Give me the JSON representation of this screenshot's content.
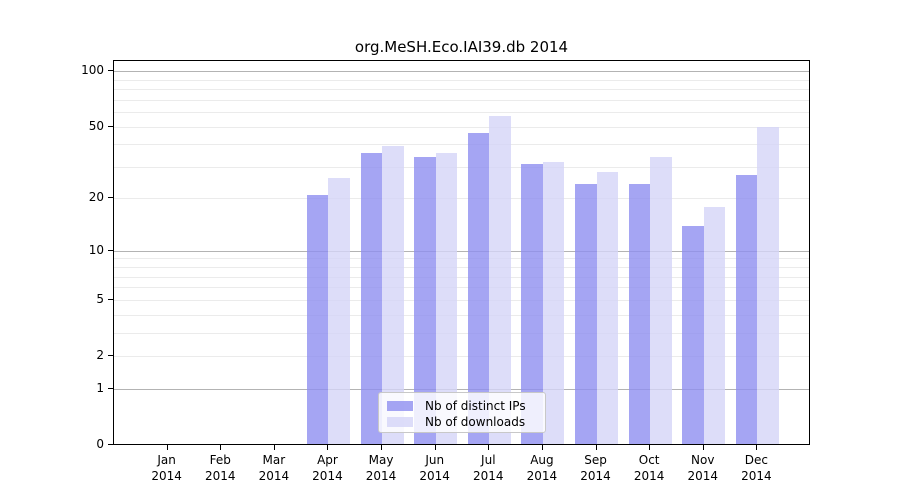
{
  "chart_data": {
    "type": "bar",
    "title": "org.MeSH.Eco.IAI39.db 2014",
    "categories": [
      "Jan",
      "Feb",
      "Mar",
      "Apr",
      "May",
      "Jun",
      "Jul",
      "Aug",
      "Sep",
      "Oct",
      "Nov",
      "Dec"
    ],
    "x_tick_year": "2014",
    "series": [
      {
        "name": "Nb of distinct IPs",
        "color": "rgba(143,143,240,0.8)",
        "values": [
          0,
          0,
          0,
          21,
          36,
          34,
          46,
          31,
          24,
          24,
          14,
          27
        ]
      },
      {
        "name": "Nb of downloads",
        "color": "rgba(212,212,247,0.8)",
        "values": [
          0,
          0,
          0,
          26,
          39,
          36,
          57,
          32,
          28,
          34,
          18,
          50
        ]
      }
    ],
    "y_scale": "log1p",
    "y_axis_ticks": [
      0,
      1,
      2,
      5,
      10,
      20,
      50,
      100
    ],
    "y_major_gridlines": [
      1,
      10,
      100
    ],
    "y_minor_gridlines": [
      2,
      3,
      4,
      5,
      6,
      7,
      8,
      9,
      20,
      30,
      40,
      50,
      60,
      70,
      80,
      90
    ],
    "ylim": [
      0,
      113
    ],
    "grid": true,
    "legend_position": "bottom-center"
  },
  "colors": {
    "major_gridline": "#b3b3b3",
    "minor_gridline": "#ebebeb",
    "axis": "#000000",
    "legend_border": "#c8c8c8"
  }
}
